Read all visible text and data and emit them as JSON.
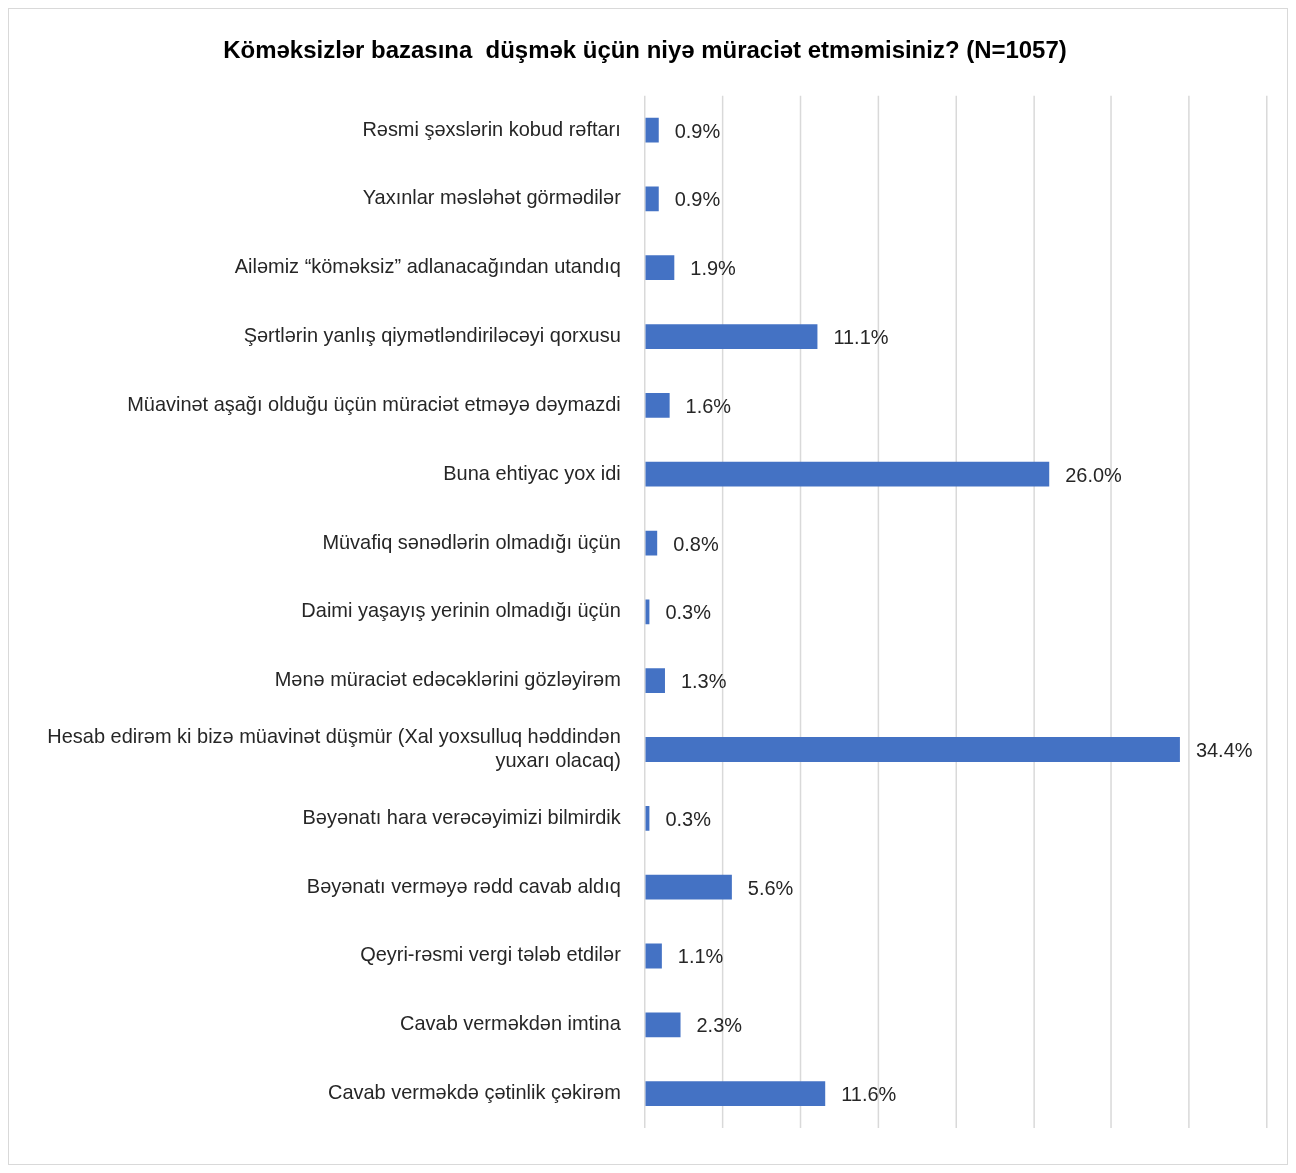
{
  "chart_data": {
    "type": "bar",
    "orientation": "horizontal",
    "title": "Köməksizlər bazasına  düşmək üçün niyə müraciət etməmisiniz? (N=1057)",
    "categories": [
      "Rəsmi şəxslərin kobud rəftarı",
      "Yaxınlar məsləhət görmədilər",
      "Ailəmiz “köməksiz” adlanacağından utandıq",
      "Şərtlərin yanlış qiymətləndiriləcəyi qorxusu",
      "Müavinət aşağı olduğu üçün müraciət etməyə dəymazdi",
      "Buna ehtiyac yox idi",
      "Müvafiq sənədlərin olmadığı üçün",
      "Daimi yaşayış yerinin olmadığı üçün",
      "Mənə müraciət edəcəklərini gözləyirəm",
      "Hesab edirəm ki bizə müavinət düşmür (Xal yoxsulluq həddindən yuxarı olacaq)",
      "Bəyənatı hara verəcəyimizi bilmirdik",
      "Bəyənatı verməyə rədd cavab aldıq",
      "Qeyri-rəsmi vergi tələb etdilər",
      "Cavab verməkdən imtina",
      "Cavab verməkdə çətinlik çəkirəm"
    ],
    "values": [
      0.9,
      0.9,
      1.9,
      11.1,
      1.6,
      26.0,
      0.8,
      0.3,
      1.3,
      34.4,
      0.3,
      5.6,
      1.1,
      2.3,
      11.6
    ],
    "value_labels": [
      "0.9%",
      "0.9%",
      "1.9%",
      "11.1%",
      "1.6%",
      "26.0%",
      "0.8%",
      "0.3%",
      "1.3%",
      "34.4%",
      "0.3%",
      "5.6%",
      "1.1%",
      "2.3%",
      "11.6%"
    ],
    "color": "#4472c4",
    "xlim": [
      0,
      40
    ],
    "xticks": [
      {
        "value": 0,
        "label": null
      },
      {
        "value": 5,
        "label": null
      },
      {
        "value": 10,
        "label": null
      },
      {
        "value": 15,
        "label": null
      },
      {
        "value": 20,
        "label": null
      },
      {
        "value": 25,
        "label": null
      },
      {
        "value": 30,
        "label": null
      },
      {
        "value": 35,
        "label": null
      },
      {
        "value": 40,
        "label": null
      }
    ],
    "grid": "x",
    "tick_labels": "y"
  }
}
